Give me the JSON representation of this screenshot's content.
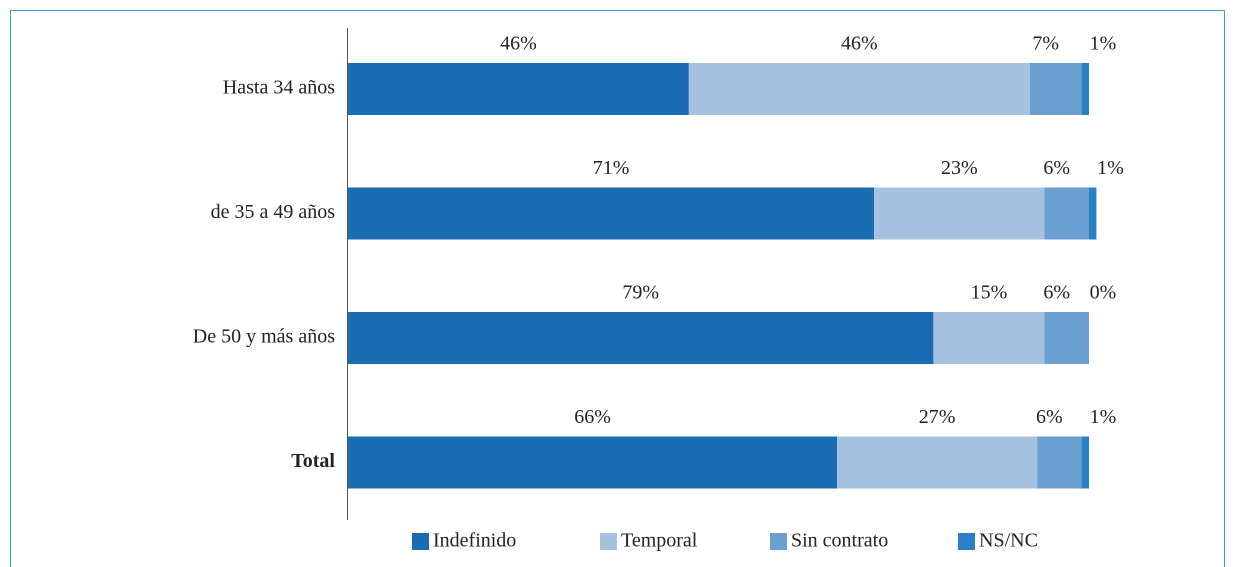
{
  "chart_data": {
    "type": "stacked-bar-horizontal",
    "categories": [
      "Hasta 34 años",
      "de 35 a 49 años",
      "De 50 y más años",
      "Total"
    ],
    "series": [
      {
        "name": "Indefinido",
        "color": "#1b6db3",
        "values": [
          46,
          71,
          79,
          66
        ],
        "value_labels": [
          "46%",
          "71%",
          "79%",
          "66%"
        ]
      },
      {
        "name": "Temporal",
        "color": "#a6c0df",
        "values": [
          46,
          23,
          15,
          27
        ],
        "value_labels": [
          "46%",
          "23%",
          "15%",
          "27%"
        ]
      },
      {
        "name": "Sin contrato",
        "color": "#6a9fd0",
        "values": [
          7,
          6,
          6,
          6
        ],
        "value_labels": [
          "7%",
          "6%",
          "6%",
          "6%"
        ]
      },
      {
        "name": "NS/NC",
        "color": "#2a80c6",
        "values": [
          1,
          1,
          0,
          1
        ],
        "value_labels": [
          "1%",
          "1%",
          "0%",
          "1%"
        ]
      }
    ],
    "xlim": [
      0,
      100
    ],
    "legend": "bottom"
  }
}
